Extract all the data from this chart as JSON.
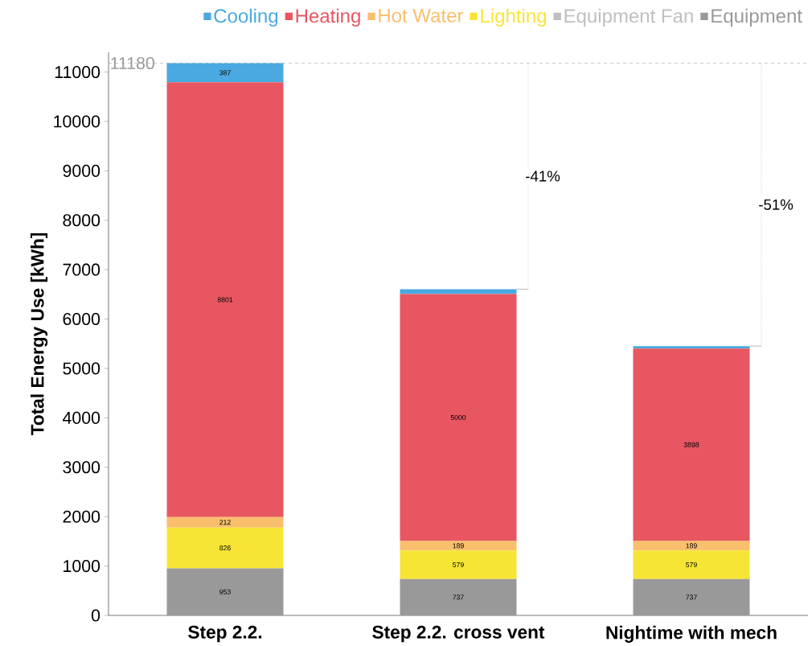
{
  "chart_data": {
    "type": "bar",
    "stacked": true,
    "ylabel": "Total Energy Use [kWh]",
    "categories": [
      "Step 2.2.",
      "Step 2.2. cross vent",
      "Nightime with mech"
    ],
    "series": [
      {
        "name": "Equipment",
        "color": "#999999",
        "values": [
          953,
          737,
          737
        ],
        "value_labels": [
          "953",
          "737",
          "737"
        ]
      },
      {
        "name": "Equipment Fan",
        "color": "#bfbfbf",
        "values": [
          0,
          0,
          0
        ]
      },
      {
        "name": "Lighting",
        "color": "#f7e535",
        "values": [
          826,
          579,
          579
        ],
        "value_labels": [
          "826",
          "579",
          "579"
        ]
      },
      {
        "name": "Hot Water",
        "color": "#f9bf6c",
        "values": [
          212,
          189,
          189
        ],
        "value_labels": [
          "212",
          "189",
          "189"
        ]
      },
      {
        "name": "Heating",
        "color": "#e85661",
        "values": [
          8801,
          5000,
          3898
        ],
        "value_labels": [
          "8801",
          "5000",
          "3898"
        ]
      },
      {
        "name": "Cooling",
        "color": "#4aa9e0",
        "values": [
          387,
          100,
          50
        ],
        "value_labels": [
          "387",
          null,
          null
        ]
      }
    ],
    "ylim": [
      0,
      11400
    ],
    "yticks": [
      0,
      1000,
      2000,
      3000,
      4000,
      5000,
      6000,
      7000,
      8000,
      9000,
      10000,
      11000
    ],
    "ref_lines": [
      {
        "axis": "y",
        "value": 11180,
        "label": "11180",
        "color": "#999999",
        "line_style": "dashed"
      }
    ],
    "annotations": [
      "-41%",
      "-51%"
    ],
    "legend": "top",
    "grid": false
  }
}
